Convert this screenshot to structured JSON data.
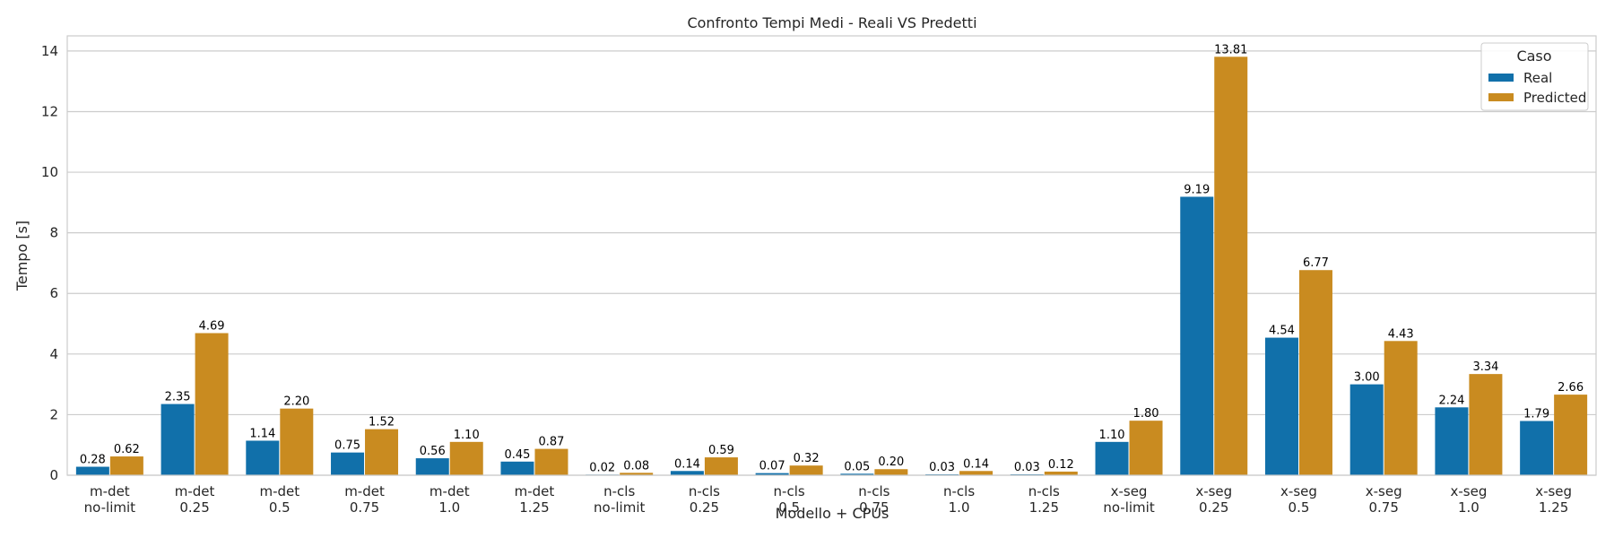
{
  "chart_data": {
    "type": "bar",
    "title": "Confronto Tempi Medi - Reali VS Predetti",
    "xlabel": "Modello + CPUs",
    "ylabel": "Tempo [s]",
    "ylim": [
      0,
      14.5
    ],
    "yticks": [
      "0",
      "2",
      "4",
      "6",
      "8",
      "10",
      "12",
      "14"
    ],
    "grid": true,
    "legend_position": "top-right",
    "legend_title": "Caso",
    "categories": [
      [
        "m-det",
        "no-limit"
      ],
      [
        "m-det",
        "0.25"
      ],
      [
        "m-det",
        "0.5"
      ],
      [
        "m-det",
        "0.75"
      ],
      [
        "m-det",
        "1.0"
      ],
      [
        "m-det",
        "1.25"
      ],
      [
        "n-cls",
        "no-limit"
      ],
      [
        "n-cls",
        "0.25"
      ],
      [
        "n-cls",
        "0.5"
      ],
      [
        "n-cls",
        "0.75"
      ],
      [
        "n-cls",
        "1.0"
      ],
      [
        "n-cls",
        "1.25"
      ],
      [
        "x-seg",
        "no-limit"
      ],
      [
        "x-seg",
        "0.25"
      ],
      [
        "x-seg",
        "0.5"
      ],
      [
        "x-seg",
        "0.75"
      ],
      [
        "x-seg",
        "1.0"
      ],
      [
        "x-seg",
        "1.25"
      ]
    ],
    "series": [
      {
        "name": "Real",
        "color": "#1170aa",
        "values": [
          0.28,
          2.35,
          1.14,
          0.75,
          0.56,
          0.45,
          0.02,
          0.14,
          0.07,
          0.05,
          0.03,
          0.03,
          1.1,
          9.19,
          4.54,
          3.0,
          2.24,
          1.79
        ],
        "labels": [
          "0.28",
          "2.35",
          "1.14",
          "0.75",
          "0.56",
          "0.45",
          "0.02",
          "0.14",
          "0.07",
          "0.05",
          "0.03",
          "0.03",
          "1.10",
          "9.19",
          "4.54",
          "3.00",
          "2.24",
          "1.79"
        ]
      },
      {
        "name": "Predicted",
        "color": "#c98b20",
        "values": [
          0.62,
          4.69,
          2.2,
          1.52,
          1.1,
          0.87,
          0.08,
          0.59,
          0.32,
          0.2,
          0.14,
          0.12,
          1.8,
          13.81,
          6.77,
          4.43,
          3.34,
          2.66
        ],
        "labels": [
          "0.62",
          "4.69",
          "2.20",
          "1.52",
          "1.10",
          "0.87",
          "0.08",
          "0.59",
          "0.32",
          "0.20",
          "0.14",
          "0.12",
          "1.80",
          "13.81",
          "6.77",
          "4.43",
          "3.34",
          "2.66"
        ]
      }
    ]
  }
}
